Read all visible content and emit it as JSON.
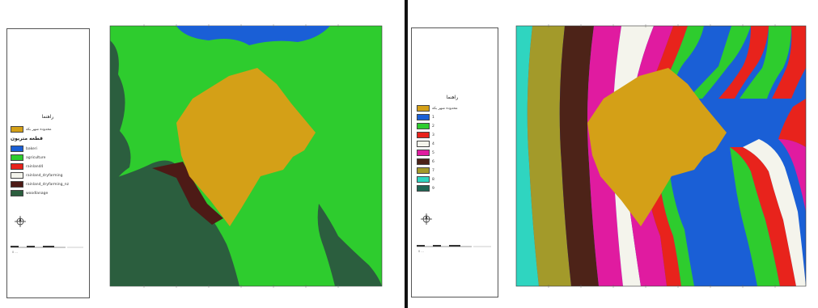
{
  "left_map": {
    "legend": {
      "title": "راهنما",
      "items": [
        {
          "label": "محدوده شهر بکه",
          "color": "#d4a017"
        },
        {
          "label": "قطعه متریون",
          "color": "",
          "heading": true
        },
        {
          "label": "bakeri",
          "color": "#1a5fd6"
        },
        {
          "label": "agriculture",
          "color": "#2ecc2e"
        },
        {
          "label": "rainland4",
          "color": "#e8231c"
        },
        {
          "label": "rainland_dryfarming",
          "color": "#f4f4ec"
        },
        {
          "label": "rainland_dryfarming_nz",
          "color": "#4d1a16"
        },
        {
          "label": "woodlanage",
          "color": "#2b5e3e"
        }
      ]
    }
  },
  "right_map": {
    "legend": {
      "title": "راهنما",
      "items": [
        {
          "label": "محدوده شهر بکه",
          "color": "#d4a017"
        },
        {
          "label": "1",
          "color": "#1a5fd6"
        },
        {
          "label": "2",
          "color": "#2ecc2e"
        },
        {
          "label": "3",
          "color": "#e8231c"
        },
        {
          "label": "4",
          "color": "#f4f4ec"
        },
        {
          "label": "5",
          "color": "#e01ba0"
        },
        {
          "label": "6",
          "color": "#4d2318"
        },
        {
          "label": "7",
          "color": "#a39a2a"
        },
        {
          "label": "8",
          "color": "#2fd5c0"
        },
        {
          "label": "9",
          "color": "#1f6655"
        }
      ]
    }
  }
}
